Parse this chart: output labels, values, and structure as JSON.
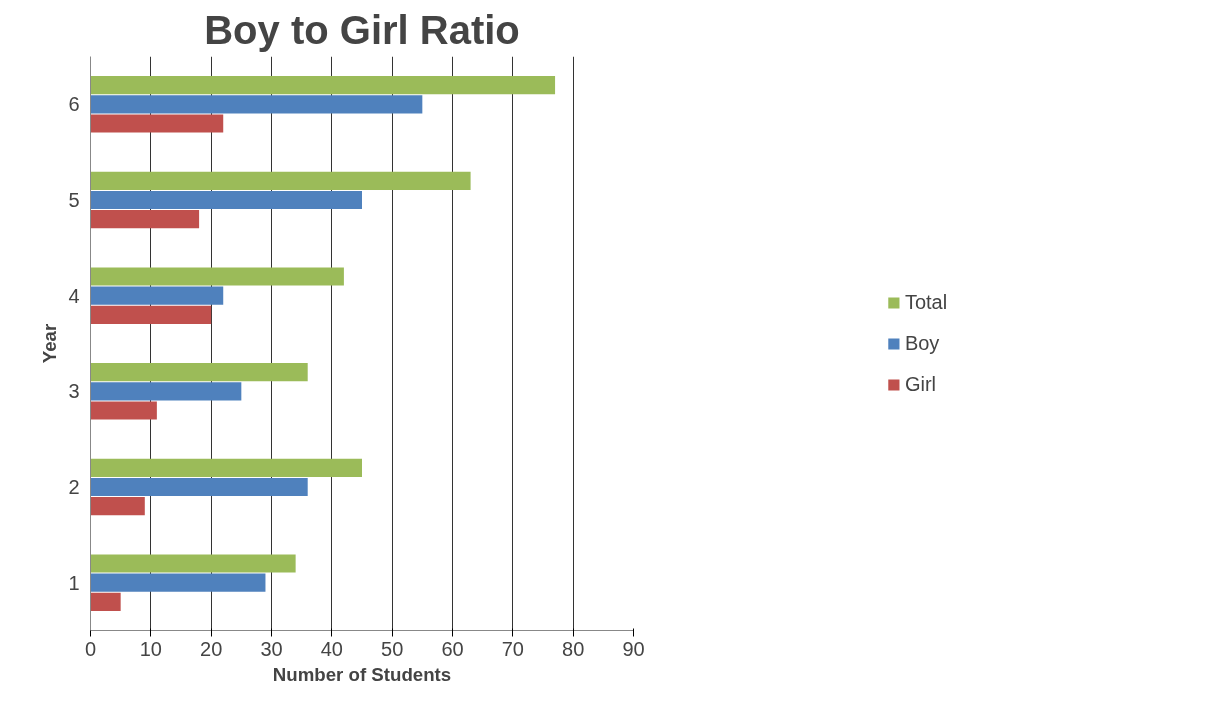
{
  "chart_data": {
    "type": "bar",
    "orientation": "horizontal",
    "title": "Boy to Girl Ratio",
    "xlabel": "Number of Students",
    "ylabel": "Year",
    "categories": [
      "6",
      "5",
      "4",
      "3",
      "2",
      "1"
    ],
    "series": [
      {
        "name": "Total",
        "color": "#9bbb59",
        "values": [
          77,
          63,
          42,
          36,
          45,
          34
        ]
      },
      {
        "name": "Boy",
        "color": "#4f81bd",
        "values": [
          55,
          45,
          22,
          25,
          36,
          29
        ]
      },
      {
        "name": "Girl",
        "color": "#c0504d",
        "values": [
          22,
          18,
          20,
          11,
          9,
          5
        ]
      }
    ],
    "xlim": [
      0,
      90
    ],
    "xticks": [
      0,
      10,
      20,
      30,
      40,
      50,
      60,
      70,
      80,
      90
    ],
    "grid": "x",
    "legend": "right"
  }
}
